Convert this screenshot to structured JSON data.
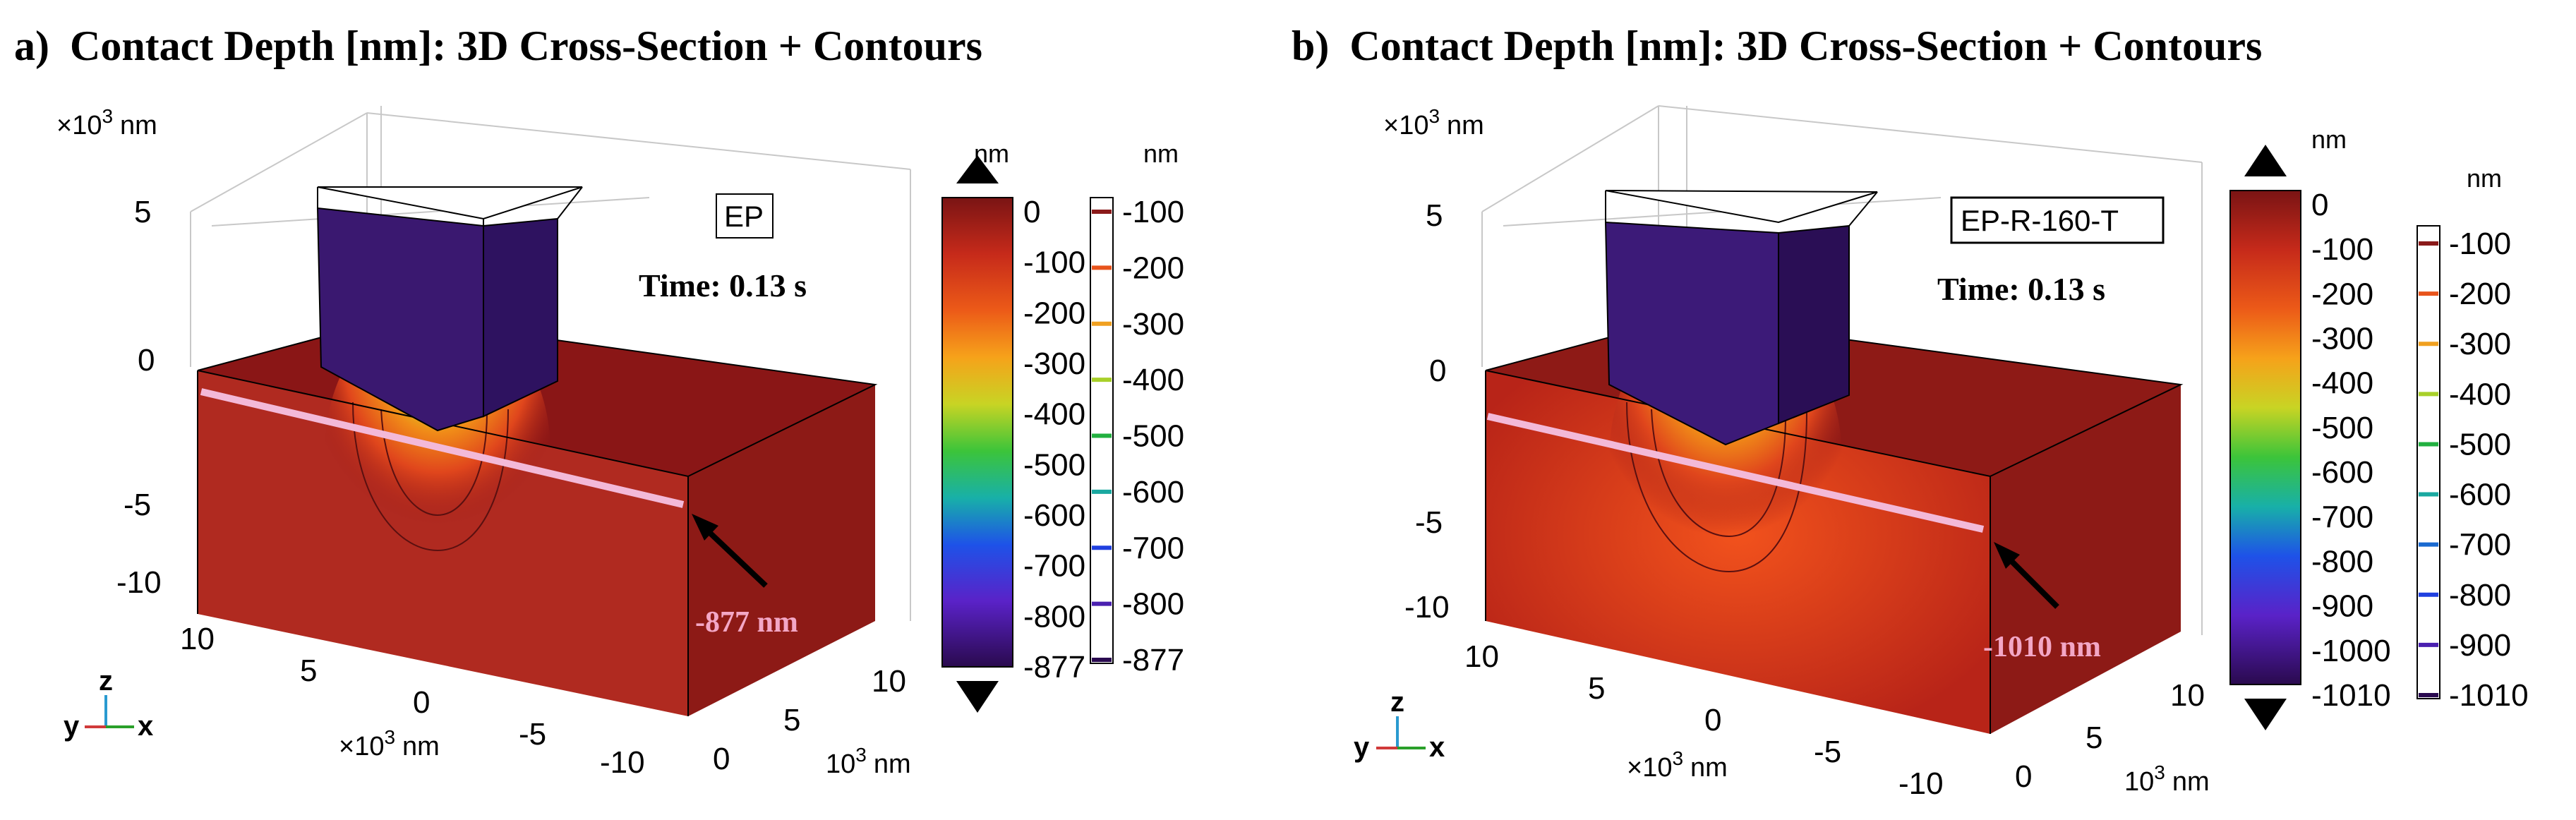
{
  "colors": {
    "surface": "#9b1818",
    "surface_dark": "#7a1010",
    "indenter": "#3a1870",
    "indenter_dark": "#2a0e55",
    "cut_line": "#f3b9d8",
    "depth_text": "#f3a7c6",
    "arrow": "#000000"
  },
  "panels": [
    {
      "letter": "a)",
      "title": "Contact Depth [nm]: 3D Cross-Section + Contours",
      "z_unit": "×10",
      "z_unit_exp": "3",
      "z_unit_suffix": "nm",
      "z_ticks": [
        "5",
        "0",
        "-5",
        "-10"
      ],
      "x_ticks": [
        "10",
        "5",
        "0",
        "-5",
        "-10"
      ],
      "x_unit": "×10",
      "x_unit_exp": "3",
      "x_unit_suffix": "nm",
      "y_ticks": [
        "0",
        "5",
        "10"
      ],
      "y_unit": "10",
      "y_unit_exp": "3",
      "y_unit_suffix": "nm",
      "label": "EP",
      "time": "Time: 0.13 s",
      "depth_label": "-877 nm",
      "cb1_unit": "nm",
      "cb1_ticks": [
        "0",
        "-100",
        "-200",
        "-300",
        "-400",
        "-500",
        "-600",
        "-700",
        "-800",
        "-877"
      ],
      "cb2_unit": "nm",
      "cb2_ticks": [
        "-100",
        "-200",
        "-300",
        "-400",
        "-500",
        "-600",
        "-700",
        "-800",
        "-877"
      ],
      "cb2_colors": [
        "#8b1a1a",
        "#e8541c",
        "#f0a020",
        "#a8d02a",
        "#22b040",
        "#1aa8a0",
        "#2040e0",
        "#4a20b0",
        "#2a0a50"
      ],
      "axes": {
        "x": "x",
        "y": "y",
        "z": "z"
      }
    },
    {
      "letter": "b)",
      "title": "Contact Depth [nm]: 3D Cross-Section + Contours",
      "z_unit": "×10",
      "z_unit_exp": "3",
      "z_unit_suffix": "nm",
      "z_ticks": [
        "5",
        "0",
        "-5",
        "-10"
      ],
      "x_ticks": [
        "10",
        "5",
        "0",
        "-5",
        "-10"
      ],
      "x_unit": "×10",
      "x_unit_exp": "3",
      "x_unit_suffix": "nm",
      "y_ticks": [
        "0",
        "5",
        "10"
      ],
      "y_unit": "10",
      "y_unit_exp": "3",
      "y_unit_suffix": "nm",
      "label": "EP-R-160-T",
      "time": "Time: 0.13 s",
      "depth_label": "-1010 nm",
      "cb1_unit": "nm",
      "cb1_ticks": [
        "0",
        "-100",
        "-200",
        "-300",
        "-400",
        "-500",
        "-600",
        "-700",
        "-800",
        "-900",
        "-1000",
        "-1010"
      ],
      "cb2_unit": "nm",
      "cb2_ticks": [
        "-100",
        "-200",
        "-300",
        "-400",
        "-500",
        "-600",
        "-700",
        "-800",
        "-900",
        "-1010"
      ],
      "cb2_colors": [
        "#8b1a1a",
        "#e8541c",
        "#f0a020",
        "#a8d02a",
        "#22b040",
        "#1aa8a0",
        "#1a6ad0",
        "#2040e0",
        "#4a20b0",
        "#2a0a50"
      ],
      "axes": {
        "x": "x",
        "y": "y",
        "z": "z"
      }
    }
  ]
}
